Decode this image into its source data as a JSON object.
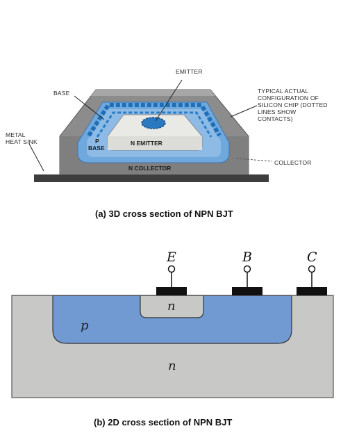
{
  "diagram_3d": {
    "labels": {
      "emitter": "EMITTER",
      "base": "BASE",
      "metal_heat_sink_1": "METAL",
      "metal_heat_sink_2": "HEAT SINK",
      "typical_1": "TYPICAL ACTUAL",
      "typical_2": "CONFIGURATION OF",
      "typical_3": "SILICON CHIP (DOTTED",
      "typical_4": "LINES SHOW",
      "typical_5": "CONTACTS)",
      "collector": "COLLECTOR",
      "p_base_1": "P",
      "p_base_2": "BASE",
      "n_emitter": "N EMITTER",
      "n_collector": "N COLLECTOR"
    },
    "caption": "(a) 3D cross section of NPN BJT"
  },
  "diagram_2d": {
    "terminals": {
      "e": "E",
      "b": "B",
      "c": "C"
    },
    "regions": {
      "emitter_n": "n",
      "base_p": "p",
      "collector_n": "n"
    },
    "caption": "(b) 2D cross section of NPN BJT"
  },
  "colors": {
    "silicon_gray": "#c8c9c6",
    "p_region_blue": "#7199d2",
    "dark_gray_body": "#8c8c8c",
    "light_blue": "#6fa8dc",
    "dotted_contact_blue": "#1f6fb8",
    "heat_sink": "#3d3d3d",
    "contact_black": "#111111"
  }
}
